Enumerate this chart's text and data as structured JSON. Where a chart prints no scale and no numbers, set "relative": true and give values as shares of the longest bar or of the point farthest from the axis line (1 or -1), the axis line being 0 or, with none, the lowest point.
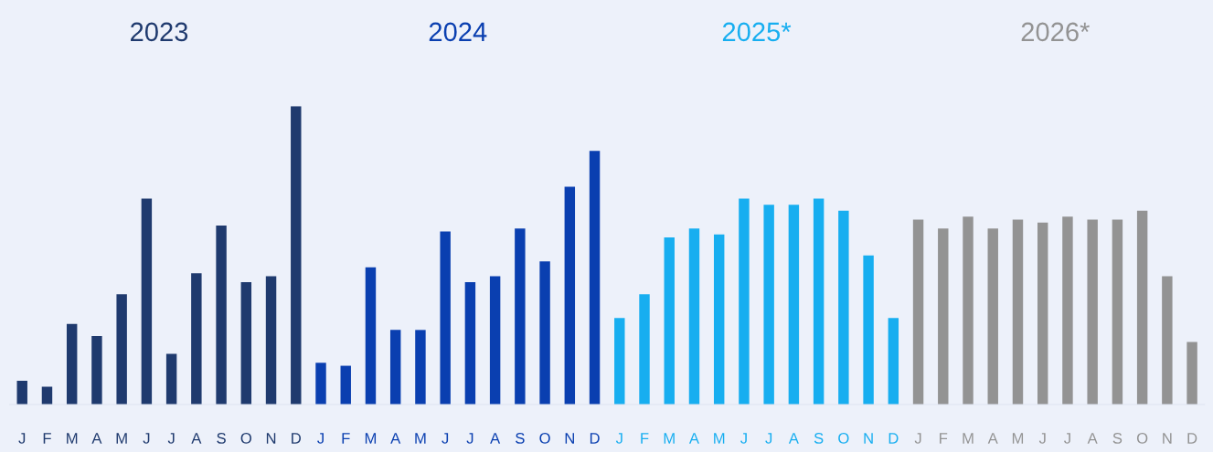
{
  "chart_data": {
    "type": "bar",
    "relative": true,
    "grid": false,
    "legend": false,
    "categories": [
      "J",
      "F",
      "M",
      "A",
      "M",
      "J",
      "J",
      "A",
      "S",
      "O",
      "N",
      "D",
      "J",
      "F",
      "M",
      "A",
      "M",
      "J",
      "J",
      "A",
      "S",
      "O",
      "N",
      "D",
      "J",
      "F",
      "M",
      "A",
      "M",
      "J",
      "J",
      "A",
      "S",
      "O",
      "N",
      "D",
      "J",
      "F",
      "M",
      "A",
      "M",
      "J",
      "J",
      "A",
      "S",
      "O",
      "N",
      "D"
    ],
    "series": [
      {
        "name": "2023",
        "color": "#1f3a6e",
        "values": [
          0.08,
          0.06,
          0.27,
          0.23,
          0.37,
          0.69,
          0.17,
          0.44,
          0.6,
          0.41,
          0.43,
          1.0,
          null,
          null,
          null,
          null,
          null,
          null,
          null,
          null,
          null,
          null,
          null,
          null,
          null,
          null,
          null,
          null,
          null,
          null,
          null,
          null,
          null,
          null,
          null,
          null,
          null,
          null,
          null,
          null,
          null,
          null,
          null,
          null,
          null,
          null,
          null,
          null
        ]
      },
      {
        "name": "2024",
        "color": "#0a3fb0",
        "values": [
          null,
          null,
          null,
          null,
          null,
          null,
          null,
          null,
          null,
          null,
          null,
          null,
          0.14,
          0.13,
          0.46,
          0.25,
          0.25,
          0.58,
          0.41,
          0.43,
          0.59,
          0.48,
          0.73,
          0.85,
          null,
          null,
          null,
          null,
          null,
          null,
          null,
          null,
          null,
          null,
          null,
          null,
          null,
          null,
          null,
          null,
          null,
          null,
          null,
          null,
          null,
          null,
          null,
          null
        ]
      },
      {
        "name": "2025*",
        "color": "#17aef0",
        "values": [
          null,
          null,
          null,
          null,
          null,
          null,
          null,
          null,
          null,
          null,
          null,
          null,
          null,
          null,
          null,
          null,
          null,
          null,
          null,
          null,
          null,
          null,
          null,
          null,
          0.29,
          0.37,
          0.56,
          0.59,
          0.57,
          0.69,
          0.67,
          0.67,
          0.69,
          0.65,
          0.5,
          0.29,
          null,
          null,
          null,
          null,
          null,
          null,
          null,
          null,
          null,
          null,
          null,
          null
        ]
      },
      {
        "name": "2026*",
        "color": "#939393",
        "values": [
          null,
          null,
          null,
          null,
          null,
          null,
          null,
          null,
          null,
          null,
          null,
          null,
          null,
          null,
          null,
          null,
          null,
          null,
          null,
          null,
          null,
          null,
          null,
          null,
          null,
          null,
          null,
          null,
          null,
          null,
          null,
          null,
          null,
          null,
          null,
          null,
          0.62,
          0.59,
          0.63,
          0.59,
          0.62,
          0.61,
          0.63,
          0.62,
          0.62,
          0.65,
          0.43,
          0.21
        ]
      }
    ]
  }
}
